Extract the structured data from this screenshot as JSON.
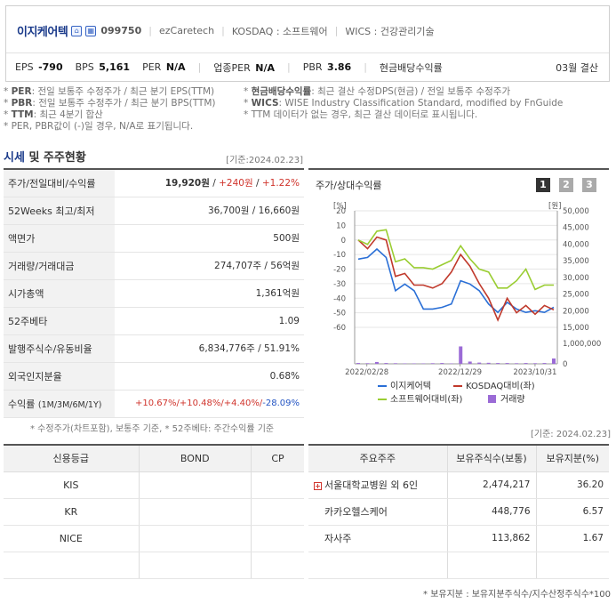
{
  "header": {
    "company_name": "이지케어텍",
    "code": "099750",
    "eng_name": "ezCaretech",
    "market": "KOSDAQ : 소프트웨어",
    "wics": "WICS : 건강관리기술",
    "icons": [
      "home-icon",
      "building-icon"
    ],
    "metrics": [
      {
        "label": "EPS",
        "value": "-790"
      },
      {
        "label": "BPS",
        "value": "5,161"
      },
      {
        "label": "PER",
        "value": "N/A"
      },
      {
        "label": "업종PER",
        "value": "N/A"
      },
      {
        "label": "PBR",
        "value": "3.86"
      },
      {
        "label": "현금배당수익률",
        "value": ""
      }
    ],
    "settlement": "03월 결산"
  },
  "notes": {
    "r1c1_key": "PER",
    "r1c1_text": ": 전일 보통주 수정주가 / 최근 분기 EPS(TTM)",
    "r1c2_key": "현금배당수익률",
    "r1c2_text": ": 최근 결산 수정DPS(현금) / 전일 보통주 수정주가",
    "r2c1_key": "PBR",
    "r2c1_text": ": 전일 보통주 수정주가 / 최근 분기 BPS(TTM)",
    "r2c2_key": "WICS",
    "r2c2_text": ": WISE Industry Classification Standard, modified by FnGuide",
    "r3c1_key": "TTM",
    "r3c1_text": ": 최근 4분기 합산",
    "r3c2_text": "* TTM 데이터가 없는 경우, 최근 결산 데이터로 표시됩니다.",
    "r4_text": "* PER, PBR값이 (-)일 경우, N/A로 표기됩니다."
  },
  "market_section": {
    "title_blue": "시세",
    "title_rest": " 및 주주현황",
    "base_date": "[기준:2024.02.23]",
    "rows": [
      {
        "label": "주가/전일대비/수익률",
        "price": "19,920원",
        "change": "+240원",
        "pct": "+1.22%"
      },
      {
        "label": "52Weeks 최고/최저",
        "value": "36,700원 / 16,660원"
      },
      {
        "label": "액면가",
        "value": "500원"
      },
      {
        "label": "거래량/거래대금",
        "value": "274,707주 / 56억원"
      },
      {
        "label": "시가총액",
        "value": "1,361억원"
      },
      {
        "label": "52주베타",
        "value": "1.09"
      },
      {
        "label": "발행주식수/유동비율",
        "value": "6,834,776주 / 51.91%"
      },
      {
        "label": "외국인지분율",
        "value": "0.68%"
      },
      {
        "label": "수익률",
        "label_sub": "(1M/3M/6M/1Y)",
        "r1m": "+10.67%/",
        "r3m": "+10.48%/",
        "r6m": "+4.40%/",
        "r1y": "-28.09%"
      }
    ],
    "footnote": "* 수정주가(차트포함), 보통주 기준, * 52주베타: 주간수익률 기준"
  },
  "chart_panel": {
    "title": "주가/상대수익률",
    "pages": [
      "1",
      "2",
      "3"
    ],
    "active_page": "1"
  },
  "chart_data": {
    "type": "line",
    "y_left_label": "[%]",
    "y_left_ticks": [
      "20",
      "10",
      "0",
      "-10",
      "-20",
      "-30",
      "-40",
      "-50",
      "-60"
    ],
    "y_left_range": [
      -60,
      20
    ],
    "y_right_label": "[원]",
    "y_right_ticks": [
      "50,000",
      "45,000",
      "40,000",
      "35,000",
      "30,000",
      "25,000",
      "20,000",
      "15,000"
    ],
    "y_right_range": [
      15000,
      50000
    ],
    "volume_ticks": [
      "1,000,000",
      "0"
    ],
    "volume_range": [
      0,
      1000000
    ],
    "x_ticks": [
      "2022/02/28",
      "2022/12/29",
      "2023/10/31"
    ],
    "series": [
      {
        "name": "이지케어텍",
        "color": "#2a6fd6",
        "axis": "right",
        "values": [
          35500,
          36000,
          38500,
          36000,
          26000,
          28000,
          26000,
          20500,
          20500,
          21000,
          22000,
          29000,
          28000,
          26000,
          22000,
          19500,
          22500,
          20500,
          19500,
          20000,
          19500,
          21000
        ]
      },
      {
        "name": "KOSDAQ대비(좌)",
        "color": "#c0392b",
        "axis": "left",
        "values": [
          0,
          -6,
          2,
          0,
          -25,
          -23,
          -31,
          -31,
          -33,
          -30,
          -22,
          -10,
          -18,
          -30,
          -40,
          -55,
          -40,
          -50,
          -45,
          -51,
          -45,
          -48
        ]
      },
      {
        "name": "소프트웨어대비(좌)",
        "color": "#9acd32",
        "axis": "left",
        "values": [
          0,
          -3,
          6,
          7,
          -15,
          -13,
          -19,
          -19,
          -20,
          -17,
          -14,
          -4,
          -13,
          -20,
          -22,
          -33,
          -33,
          -28,
          -20,
          -34,
          -31,
          -31
        ]
      },
      {
        "name": "거래량",
        "color": "#9b6bd6",
        "axis": "volume",
        "values": [
          40000,
          30000,
          90000,
          40000,
          30000,
          20000,
          20000,
          20000,
          30000,
          40000,
          20000,
          850000,
          110000,
          60000,
          50000,
          40000,
          40000,
          30000,
          40000,
          30000,
          40000,
          260000
        ]
      }
    ]
  },
  "credit": {
    "base_date": "[기준: 2024.02.23]",
    "headers": [
      "신용등급",
      "BOND",
      "CP"
    ],
    "rows": [
      [
        "KIS",
        "",
        ""
      ],
      [
        "KR",
        "",
        ""
      ],
      [
        "NICE",
        "",
        ""
      ],
      [
        "",
        "",
        ""
      ]
    ]
  },
  "holders": {
    "headers": [
      "주요주주",
      "보유주식수(보통)",
      "보유지분(%)"
    ],
    "rows": [
      {
        "name": "서울대학교병원 외 6인",
        "shares": "2,474,217",
        "pct": "36.20"
      },
      {
        "name": "카카오헬스케어",
        "shares": "448,776",
        "pct": "6.57"
      },
      {
        "name": "자사주",
        "shares": "113,862",
        "pct": "1.67"
      },
      {
        "name": "",
        "shares": "",
        "pct": ""
      }
    ],
    "footnote": "* 보유지분 : 보유지분주식수/지수산정주식수*100"
  }
}
